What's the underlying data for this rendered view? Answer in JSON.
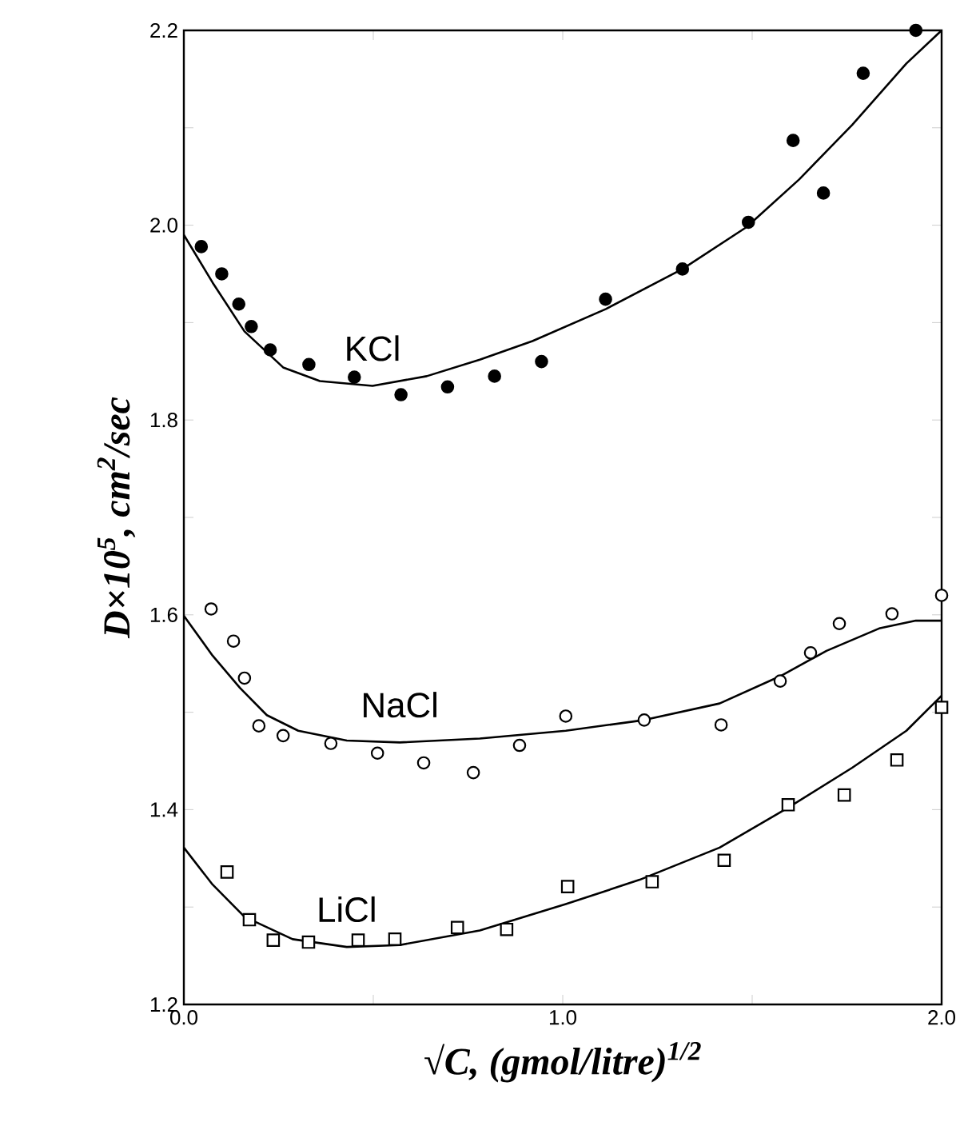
{
  "chart_data": {
    "type": "scatter",
    "xlabel": "√C,  (gmol/litre)$^{1/2}$",
    "ylabel": "D×10$^{5}$,  cm$^{2}$/sec",
    "xlim": [
      0,
      2.0
    ],
    "ylim": [
      1.2,
      2.2
    ],
    "xticks": [
      {
        "value": 0,
        "label": "0.0"
      },
      {
        "value": 0.5,
        "label": null
      },
      {
        "value": 1,
        "label": "1.0"
      },
      {
        "value": 1.5,
        "label": null
      },
      {
        "value": 2,
        "label": "2.0"
      }
    ],
    "yticks": [
      {
        "value": 1.2,
        "label": "1.2"
      },
      {
        "value": 1.3,
        "label": null
      },
      {
        "value": 1.4,
        "label": "1.4"
      },
      {
        "value": 1.5,
        "label": null
      },
      {
        "value": 1.6,
        "label": "1.6"
      },
      {
        "value": 1.7,
        "label": null
      },
      {
        "value": 1.8,
        "label": "1.8"
      },
      {
        "value": 1.9,
        "label": null
      },
      {
        "value": 2.0,
        "label": "2.0"
      },
      {
        "value": 2.1,
        "label": null
      },
      {
        "value": 2.2,
        "label": "2.2"
      }
    ],
    "series": [
      {
        "marker": "circle",
        "color": "#000000",
        "x": [
          0.046,
          0.1,
          0.145,
          0.178,
          0.228,
          0.33,
          0.45,
          0.573,
          0.696,
          0.82,
          0.944,
          1.113,
          1.316,
          1.49,
          1.608,
          1.688,
          1.793,
          1.932
        ],
        "values": [
          1.978,
          1.95,
          1.919,
          1.896,
          1.872,
          1.857,
          1.844,
          1.826,
          1.834,
          1.845,
          1.86,
          1.924,
          1.955,
          2.003,
          2.087,
          2.033,
          2.156,
          2.2
        ]
      },
      {
        "type": "line",
        "name": "KCl",
        "marker": "none",
        "color": "#000000",
        "x": [
          0,
          0.076,
          0.16,
          0.262,
          0.359,
          0.498,
          0.641,
          0.781,
          0.92,
          1.114,
          1.316,
          1.485,
          1.624,
          1.764,
          1.907,
          2.0
        ],
        "values": [
          1.99,
          1.941,
          1.891,
          1.854,
          1.84,
          1.835,
          1.845,
          1.862,
          1.881,
          1.914,
          1.955,
          1.998,
          2.047,
          2.103,
          2.166,
          2.2
        ]
      },
      {
        "marker": "circle",
        "color": "#000000",
        "x": [
          0.072,
          0.131,
          0.16,
          0.198,
          0.262,
          0.388,
          0.511,
          0.633,
          0.764,
          0.886,
          1.008,
          1.215,
          1.418,
          1.574,
          1.654,
          1.73,
          1.869,
          2.0
        ],
        "values": [
          1.606,
          1.573,
          1.535,
          1.486,
          1.476,
          1.468,
          1.458,
          1.448,
          1.438,
          1.466,
          1.496,
          1.492,
          1.487,
          1.532,
          1.561,
          1.591,
          1.601,
          1.62
        ]
      },
      {
        "type": "line",
        "name": "NaCl",
        "marker": "none",
        "color": "#000000",
        "x": [
          0,
          0.076,
          0.148,
          0.219,
          0.302,
          0.43,
          0.57,
          0.781,
          1.008,
          1.215,
          1.414,
          1.574,
          1.696,
          1.835,
          1.932,
          2.0
        ],
        "values": [
          1.599,
          1.558,
          1.525,
          1.497,
          1.481,
          1.471,
          1.469,
          1.473,
          1.481,
          1.492,
          1.509,
          1.537,
          1.563,
          1.586,
          1.594,
          1.594
        ]
      },
      {
        "marker": "square",
        "color": "#000000",
        "x": [
          0.114,
          0.173,
          0.236,
          0.329,
          0.46,
          0.557,
          0.722,
          0.852,
          1.013,
          1.236,
          1.426,
          1.595,
          1.743,
          1.882,
          2.0
        ],
        "values": [
          1.336,
          1.287,
          1.266,
          1.264,
          1.266,
          1.267,
          1.279,
          1.277,
          1.321,
          1.326,
          1.348,
          1.405,
          1.415,
          1.451,
          1.505
        ]
      },
      {
        "type": "line",
        "name": "LiCl",
        "marker": "none",
        "color": "#000000",
        "x": [
          0,
          0.076,
          0.16,
          0.287,
          0.43,
          0.57,
          0.781,
          1.008,
          1.203,
          1.414,
          1.595,
          1.764,
          1.907,
          2.0
        ],
        "values": [
          1.361,
          1.323,
          1.29,
          1.267,
          1.259,
          1.261,
          1.276,
          1.303,
          1.328,
          1.361,
          1.402,
          1.443,
          1.481,
          1.517
        ]
      }
    ]
  }
}
